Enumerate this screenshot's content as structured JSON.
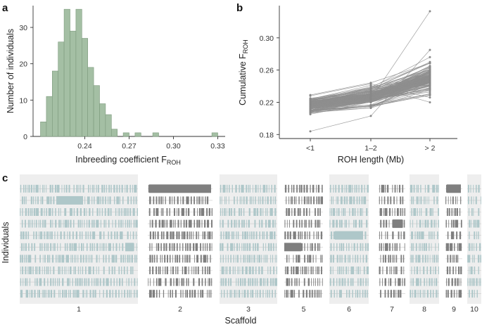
{
  "chart_data": [
    {
      "panel": "a",
      "type": "bar",
      "xlabel": "Inbreeding coefficient F",
      "xlabel_sub": "ROH",
      "ylabel": "Number of individuals",
      "xlim": [
        0.205,
        0.335
      ],
      "ylim": [
        0,
        36
      ],
      "xticks": [
        0.24,
        0.27,
        0.3,
        0.33
      ],
      "xtick_labels": [
        "0.24",
        "0.27",
        "0.30",
        "0.33"
      ],
      "yticks": [
        0,
        10,
        20,
        30
      ],
      "ytick_labels": [
        "0",
        "10",
        "20",
        "30"
      ],
      "bin_width": 0.004,
      "bin_starts": [
        0.21,
        0.214,
        0.218,
        0.222,
        0.226,
        0.23,
        0.234,
        0.238,
        0.242,
        0.246,
        0.25,
        0.254,
        0.258,
        0.262,
        0.266,
        0.27,
        0.274,
        0.278,
        0.282,
        0.286,
        0.29,
        0.294,
        0.298,
        0.302,
        0.306,
        0.31,
        0.314,
        0.318,
        0.322,
        0.326
      ],
      "values": [
        4,
        11,
        18,
        26,
        35,
        29,
        35,
        27,
        19,
        14,
        9,
        6,
        2,
        0,
        1,
        0,
        1,
        0,
        0,
        1,
        0,
        0,
        0,
        0,
        0,
        0,
        0,
        0,
        0,
        1
      ],
      "color": "#a4bfa4",
      "edge_color": "#7c9a7c"
    },
    {
      "panel": "b",
      "type": "line",
      "xlabel": "ROH length (Mb)",
      "ylabel": "Cumulative F",
      "ylabel_sub": "ROH",
      "categories": [
        "<1",
        "1–2",
        "> 2"
      ],
      "ylim": [
        0.175,
        0.34
      ],
      "yticks": [
        0.18,
        0.22,
        0.26,
        0.3
      ],
      "ytick_labels": [
        "0.18",
        "0.22",
        "0.26",
        "0.30"
      ],
      "line_color": "#8e8e8e",
      "n_individuals": 150,
      "series_summary": {
        "first_point_range": [
          0.184,
          0.229
        ],
        "second_point_range": [
          0.203,
          0.244
        ],
        "third_point_range": [
          0.219,
          0.333
        ]
      },
      "highlighted_series": [
        {
          "values": [
            0.21,
            0.224,
            0.333
          ]
        },
        {
          "values": [
            0.184,
            0.203,
            0.285
          ]
        },
        {
          "values": [
            0.222,
            0.238,
            0.276
          ]
        },
        {
          "values": [
            0.216,
            0.236,
            0.27
          ]
        },
        {
          "values": [
            0.228,
            0.243,
            0.226
          ]
        },
        {
          "values": [
            0.224,
            0.241,
            0.22
          ]
        }
      ]
    },
    {
      "panel": "c",
      "type": "heatmap",
      "xlabel": "Scaffold",
      "ylabel": "Individuals",
      "scaffolds": [
        "1",
        "2",
        "3",
        "5",
        "6",
        "7",
        "8",
        "9",
        "10"
      ],
      "n_rows": 10,
      "light_roh_color": "#aec7c9",
      "dark_roh_color": "#7f7f7f",
      "band_color": "#eeeeee"
    }
  ]
}
